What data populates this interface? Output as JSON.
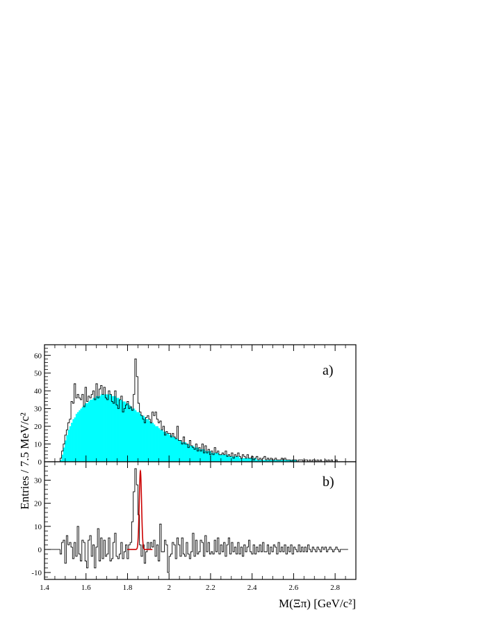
{
  "chart_data": [
    {
      "panel": "a",
      "type": "bar",
      "label": "a)",
      "xlabel": "M(Ξπ) [GeV/c²]",
      "ylabel": "Entries / 7.5 MeV/c²",
      "xlim": [
        1.4,
        2.9
      ],
      "ylim": [
        0,
        66
      ],
      "xticks": [
        "1.4",
        "1.6",
        "1.8",
        "2",
        "2.2",
        "2.4",
        "2.6",
        "2.8"
      ],
      "yticks": [
        "0",
        "10",
        "20",
        "30",
        "40",
        "50",
        "60"
      ],
      "bin_start": 1.4,
      "bin_width": 0.0075,
      "series": [
        {
          "style": "filled-histogram",
          "color": "#00ffff",
          "values": [
            0,
            0,
            0,
            0,
            0,
            0,
            0,
            0,
            0,
            0,
            1,
            4,
            8,
            12,
            15,
            18,
            20,
            22,
            24,
            25,
            27,
            28,
            29,
            30,
            31,
            32,
            33,
            33,
            34,
            35,
            35,
            36,
            36,
            37,
            37,
            37,
            38,
            38,
            38,
            38,
            38,
            38,
            38,
            37,
            37,
            37,
            36,
            36,
            35,
            35,
            34,
            34,
            33,
            33,
            32,
            31,
            30,
            30,
            29,
            28,
            28,
            27,
            26,
            26,
            25,
            24,
            24,
            23,
            22,
            22,
            21,
            20,
            20,
            19,
            18,
            18,
            17,
            17,
            16,
            16,
            15,
            15,
            14,
            14,
            13,
            13,
            12,
            12,
            11,
            11,
            11,
            10,
            10,
            9,
            9,
            9,
            8,
            8,
            8,
            7,
            7,
            7,
            7,
            6,
            6,
            6,
            6,
            5,
            5,
            5,
            5,
            5,
            4,
            4,
            4,
            4,
            4,
            4,
            3,
            3,
            3,
            3,
            3,
            3,
            3,
            2,
            2,
            2,
            2,
            2,
            2,
            2,
            2,
            2,
            2,
            2,
            1,
            1,
            1,
            1,
            1,
            1,
            1,
            1,
            1,
            1,
            1,
            1,
            1,
            1,
            1,
            1,
            1,
            1,
            1,
            1,
            1,
            1,
            1,
            1,
            1,
            1,
            0,
            0,
            0,
            0,
            0,
            0,
            0,
            0,
            0,
            0,
            0,
            0,
            0,
            0,
            0,
            0,
            0,
            0,
            0,
            0,
            0,
            0,
            0,
            0,
            0,
            0,
            0,
            0,
            0,
            0,
            0,
            0,
            0,
            0,
            0,
            0,
            0,
            0,
            0,
            0
          ]
        },
        {
          "style": "step-histogram",
          "color": "#000000",
          "values": [
            0,
            0,
            0,
            0,
            0,
            0,
            0,
            0,
            0,
            0,
            2,
            6,
            10,
            15,
            18,
            22,
            24,
            34,
            33,
            44,
            36,
            38,
            36,
            35,
            38,
            31,
            42,
            34,
            37,
            36,
            38,
            40,
            35,
            44,
            36,
            41,
            43,
            38,
            42,
            36,
            35,
            40,
            38,
            34,
            33,
            40,
            32,
            30,
            35,
            37,
            28,
            30,
            32,
            34,
            30,
            31,
            29,
            38,
            58,
            48,
            33,
            28,
            26,
            24,
            22,
            25,
            26,
            24,
            22,
            28,
            26,
            28,
            24,
            22,
            23,
            18,
            20,
            15,
            17,
            16,
            16,
            14,
            16,
            14,
            13,
            20,
            12,
            12,
            10,
            14,
            10,
            10,
            8,
            12,
            9,
            8,
            7,
            10,
            6,
            8,
            6,
            10,
            5,
            9,
            5,
            7,
            4,
            6,
            4,
            8,
            5,
            6,
            4,
            4,
            5,
            4,
            6,
            3,
            4,
            3,
            5,
            2,
            4,
            3,
            5,
            3,
            2,
            4,
            3,
            2,
            4,
            2,
            2,
            3,
            1,
            2,
            3,
            1,
            2,
            1,
            2,
            3,
            1,
            2,
            1,
            2,
            1,
            1,
            2,
            1,
            1,
            1,
            2,
            1,
            2,
            1,
            1,
            1,
            0,
            1,
            1,
            1,
            0,
            1,
            1,
            1,
            0,
            1,
            1,
            0,
            1,
            0,
            1,
            1,
            0,
            1,
            0,
            1,
            0,
            0,
            1,
            0,
            1,
            0,
            1,
            0,
            0,
            1,
            0,
            0,
            0,
            0,
            0,
            0,
            0
          ]
        }
      ]
    },
    {
      "panel": "b",
      "type": "bar",
      "label": "b)",
      "xlim": [
        1.4,
        2.9
      ],
      "ylim": [
        -13,
        38
      ],
      "yticks": [
        "-10",
        "0",
        "10",
        "20",
        "30"
      ],
      "bin_start": 1.4,
      "bin_width": 0.0075,
      "series": [
        {
          "style": "step-histogram",
          "color": "#000000",
          "values": [
            0,
            0,
            0,
            0,
            0,
            0,
            0,
            0,
            0,
            0,
            -2,
            3,
            4,
            -6,
            6,
            2,
            3,
            1,
            -4,
            3,
            -3,
            10,
            -2,
            -5,
            4,
            3,
            -5,
            -8,
            4,
            6,
            -3,
            2,
            -8,
            1,
            9,
            -5,
            5,
            -4,
            4,
            -3,
            -2,
            5,
            -5,
            -4,
            3,
            7,
            -3,
            -4,
            -2,
            3,
            -4,
            -1,
            2,
            -4,
            2,
            3,
            12,
            25,
            35,
            28,
            15,
            2,
            -3,
            2,
            -6,
            -1,
            3,
            0,
            3,
            1,
            4,
            -3,
            2,
            -5,
            11,
            -1,
            -1,
            4,
            2,
            -10,
            -3,
            -2,
            3,
            2,
            -4,
            5,
            2,
            -3,
            5,
            -2,
            -3,
            3,
            -2,
            -4,
            -1,
            7,
            -3,
            4,
            -2,
            -1,
            4,
            3,
            -3,
            6,
            -1,
            3,
            -2,
            -1,
            -2,
            4,
            -1,
            5,
            -2,
            2,
            -1,
            3,
            -3,
            2,
            5,
            -2,
            3,
            -1,
            1,
            -2,
            3,
            -2,
            1,
            -3,
            2,
            -1,
            1,
            4,
            -1,
            -2,
            2,
            -2,
            1,
            -1,
            2,
            -1,
            3,
            -1,
            -1,
            2,
            -2,
            1,
            -1,
            2,
            1,
            -2,
            3,
            -1,
            1,
            -1,
            2,
            -2,
            1,
            -1,
            2,
            -2,
            1,
            0,
            -1,
            2,
            -1,
            1,
            -1,
            1,
            -1,
            2,
            0,
            -1,
            1,
            0,
            -1,
            1,
            0,
            -1,
            1,
            0,
            1,
            -1,
            0,
            1,
            0,
            -1,
            0,
            1,
            0,
            -1,
            0,
            0,
            0,
            0,
            0
          ]
        },
        {
          "style": "fit-curve",
          "color": "#cc0000",
          "mean": 1.862,
          "sigma": 0.0055,
          "amplitude": 34,
          "range": [
            1.8,
            1.92
          ]
        }
      ]
    }
  ]
}
